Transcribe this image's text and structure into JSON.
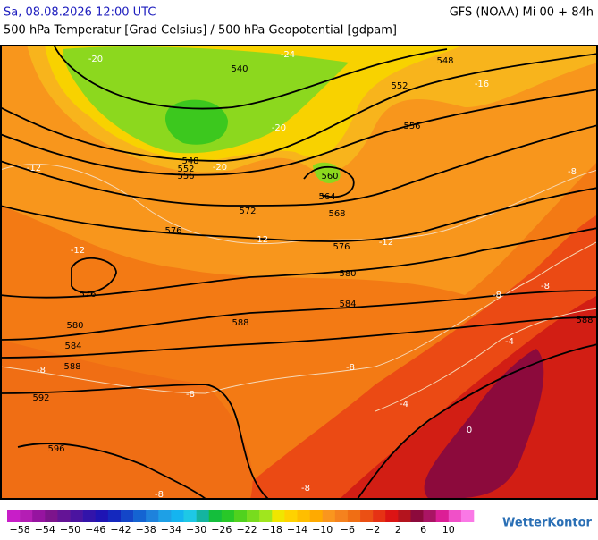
{
  "header": {
    "date": "Sa, 08.08.2026 12:00 UTC",
    "model": "GFS (NOAA) Mi 00 + 84h",
    "subtitle": "500 hPa Temperatur [Grad Celsius] / 500 hPa Geopotential [gdpam]"
  },
  "map": {
    "contour_labels": [
      "540",
      "548",
      "552",
      "556",
      "548",
      "552",
      "556",
      "560",
      "564",
      "568",
      "572",
      "576",
      "576",
      "576",
      "580",
      "584",
      "580",
      "584",
      "588",
      "588",
      "588",
      "592",
      "596"
    ],
    "temperature_labels": [
      "-24",
      "-20",
      "-16",
      "-20",
      "-20",
      "-12",
      "-12",
      "-12",
      "-12",
      "-8",
      "-8",
      "-8",
      "-8",
      "-8",
      "-8",
      "-4",
      "-4",
      "0",
      "-8",
      "-8"
    ]
  },
  "colorbar": {
    "labels": [
      "−58",
      "−54",
      "−50",
      "−46",
      "−42",
      "−38",
      "−34",
      "−30",
      "−26",
      "−22",
      "−18",
      "−14",
      "−10",
      "−6",
      "−2",
      "2",
      "6",
      "10"
    ],
    "colors": [
      "#c81ec8",
      "#b41eb4",
      "#9614a0",
      "#7d148c",
      "#641496",
      "#4b14a0",
      "#3214aa",
      "#1e14b4",
      "#1428be",
      "#1446c8",
      "#1464d2",
      "#1e82dc",
      "#1ea0e6",
      "#14b4f0",
      "#1ec8e6",
      "#14b4a0",
      "#14be3c",
      "#28c828",
      "#50d21e",
      "#78dc1e",
      "#a0e61e",
      "#f0e600",
      "#ffd200",
      "#ffbe00",
      "#ffaa00",
      "#fa961e",
      "#f5821e",
      "#f06e14",
      "#eb5014",
      "#e63214",
      "#dc1414",
      "#b4141e",
      "#8c0a3c",
      "#aa1464",
      "#dc1e96",
      "#f050c8",
      "#fa78e6"
    ],
    "logo": "WetterKontor"
  }
}
